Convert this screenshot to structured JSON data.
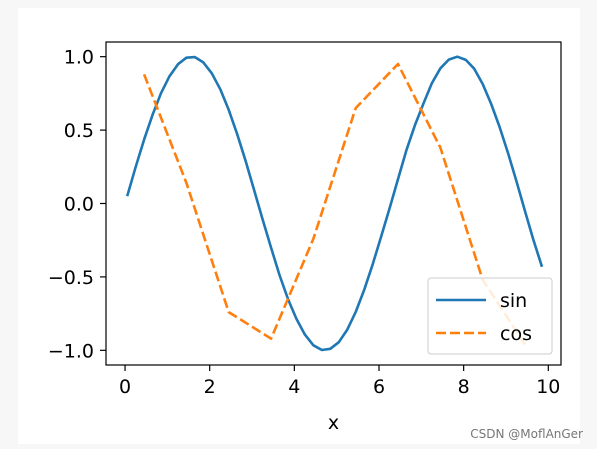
{
  "chart_data": {
    "type": "line",
    "title": "",
    "xlabel": "x",
    "ylabel": "",
    "xlim": [
      -0.45,
      10.3
    ],
    "ylim": [
      -1.1,
      1.1
    ],
    "xticks": [
      0,
      2,
      4,
      6,
      8,
      10
    ],
    "xtick_labels": [
      "0",
      "2",
      "4",
      "6",
      "8",
      "10"
    ],
    "yticks": [
      1.0,
      0.5,
      0.0,
      -0.5,
      -1.0
    ],
    "ytick_labels": [
      "1.0",
      "0.5",
      "0.0",
      "−0.5",
      "−1.0"
    ],
    "grid": false,
    "legend_position": "lower right",
    "series": [
      {
        "name": "sin",
        "style": "solid",
        "color": "#1f77b4",
        "x": [
          0.05,
          0.25,
          0.45,
          0.65,
          0.85,
          1.05,
          1.25,
          1.45,
          1.65,
          1.85,
          2.05,
          2.25,
          2.45,
          2.65,
          2.85,
          3.05,
          3.25,
          3.45,
          3.65,
          3.85,
          4.05,
          4.25,
          4.45,
          4.65,
          4.85,
          5.05,
          5.25,
          5.45,
          5.65,
          5.85,
          6.05,
          6.25,
          6.45,
          6.65,
          6.85,
          7.05,
          7.25,
          7.45,
          7.65,
          7.85,
          8.05,
          8.25,
          8.45,
          8.65,
          8.85,
          9.05,
          9.25,
          9.45,
          9.65,
          9.85
        ],
        "y": [
          0.05,
          0.247,
          0.435,
          0.605,
          0.751,
          0.867,
          0.949,
          0.993,
          0.997,
          0.961,
          0.887,
          0.778,
          0.638,
          0.472,
          0.288,
          0.092,
          -0.108,
          -0.302,
          -0.487,
          -0.651,
          -0.787,
          -0.893,
          -0.966,
          -0.998,
          -0.99,
          -0.945,
          -0.859,
          -0.739,
          -0.588,
          -0.414,
          -0.226,
          -0.033,
          0.166,
          0.365,
          0.535,
          0.68,
          0.82,
          0.921,
          0.98,
          1.0,
          0.978,
          0.918,
          0.814,
          0.678,
          0.521,
          0.342,
          0.148,
          -0.052,
          -0.25,
          -0.431
        ]
      },
      {
        "name": "cos",
        "style": "dashed",
        "color": "#ff7f0e",
        "x": [
          0.45,
          1.45,
          2.45,
          3.45,
          4.45,
          5.45,
          6.45,
          7.45,
          8.45,
          9.45
        ],
        "y": [
          0.88,
          0.14,
          -0.74,
          -0.92,
          -0.24,
          0.65,
          0.95,
          0.38,
          -0.52,
          -0.96
        ]
      }
    ]
  },
  "watermark": "CSDN @MoflAnGer"
}
